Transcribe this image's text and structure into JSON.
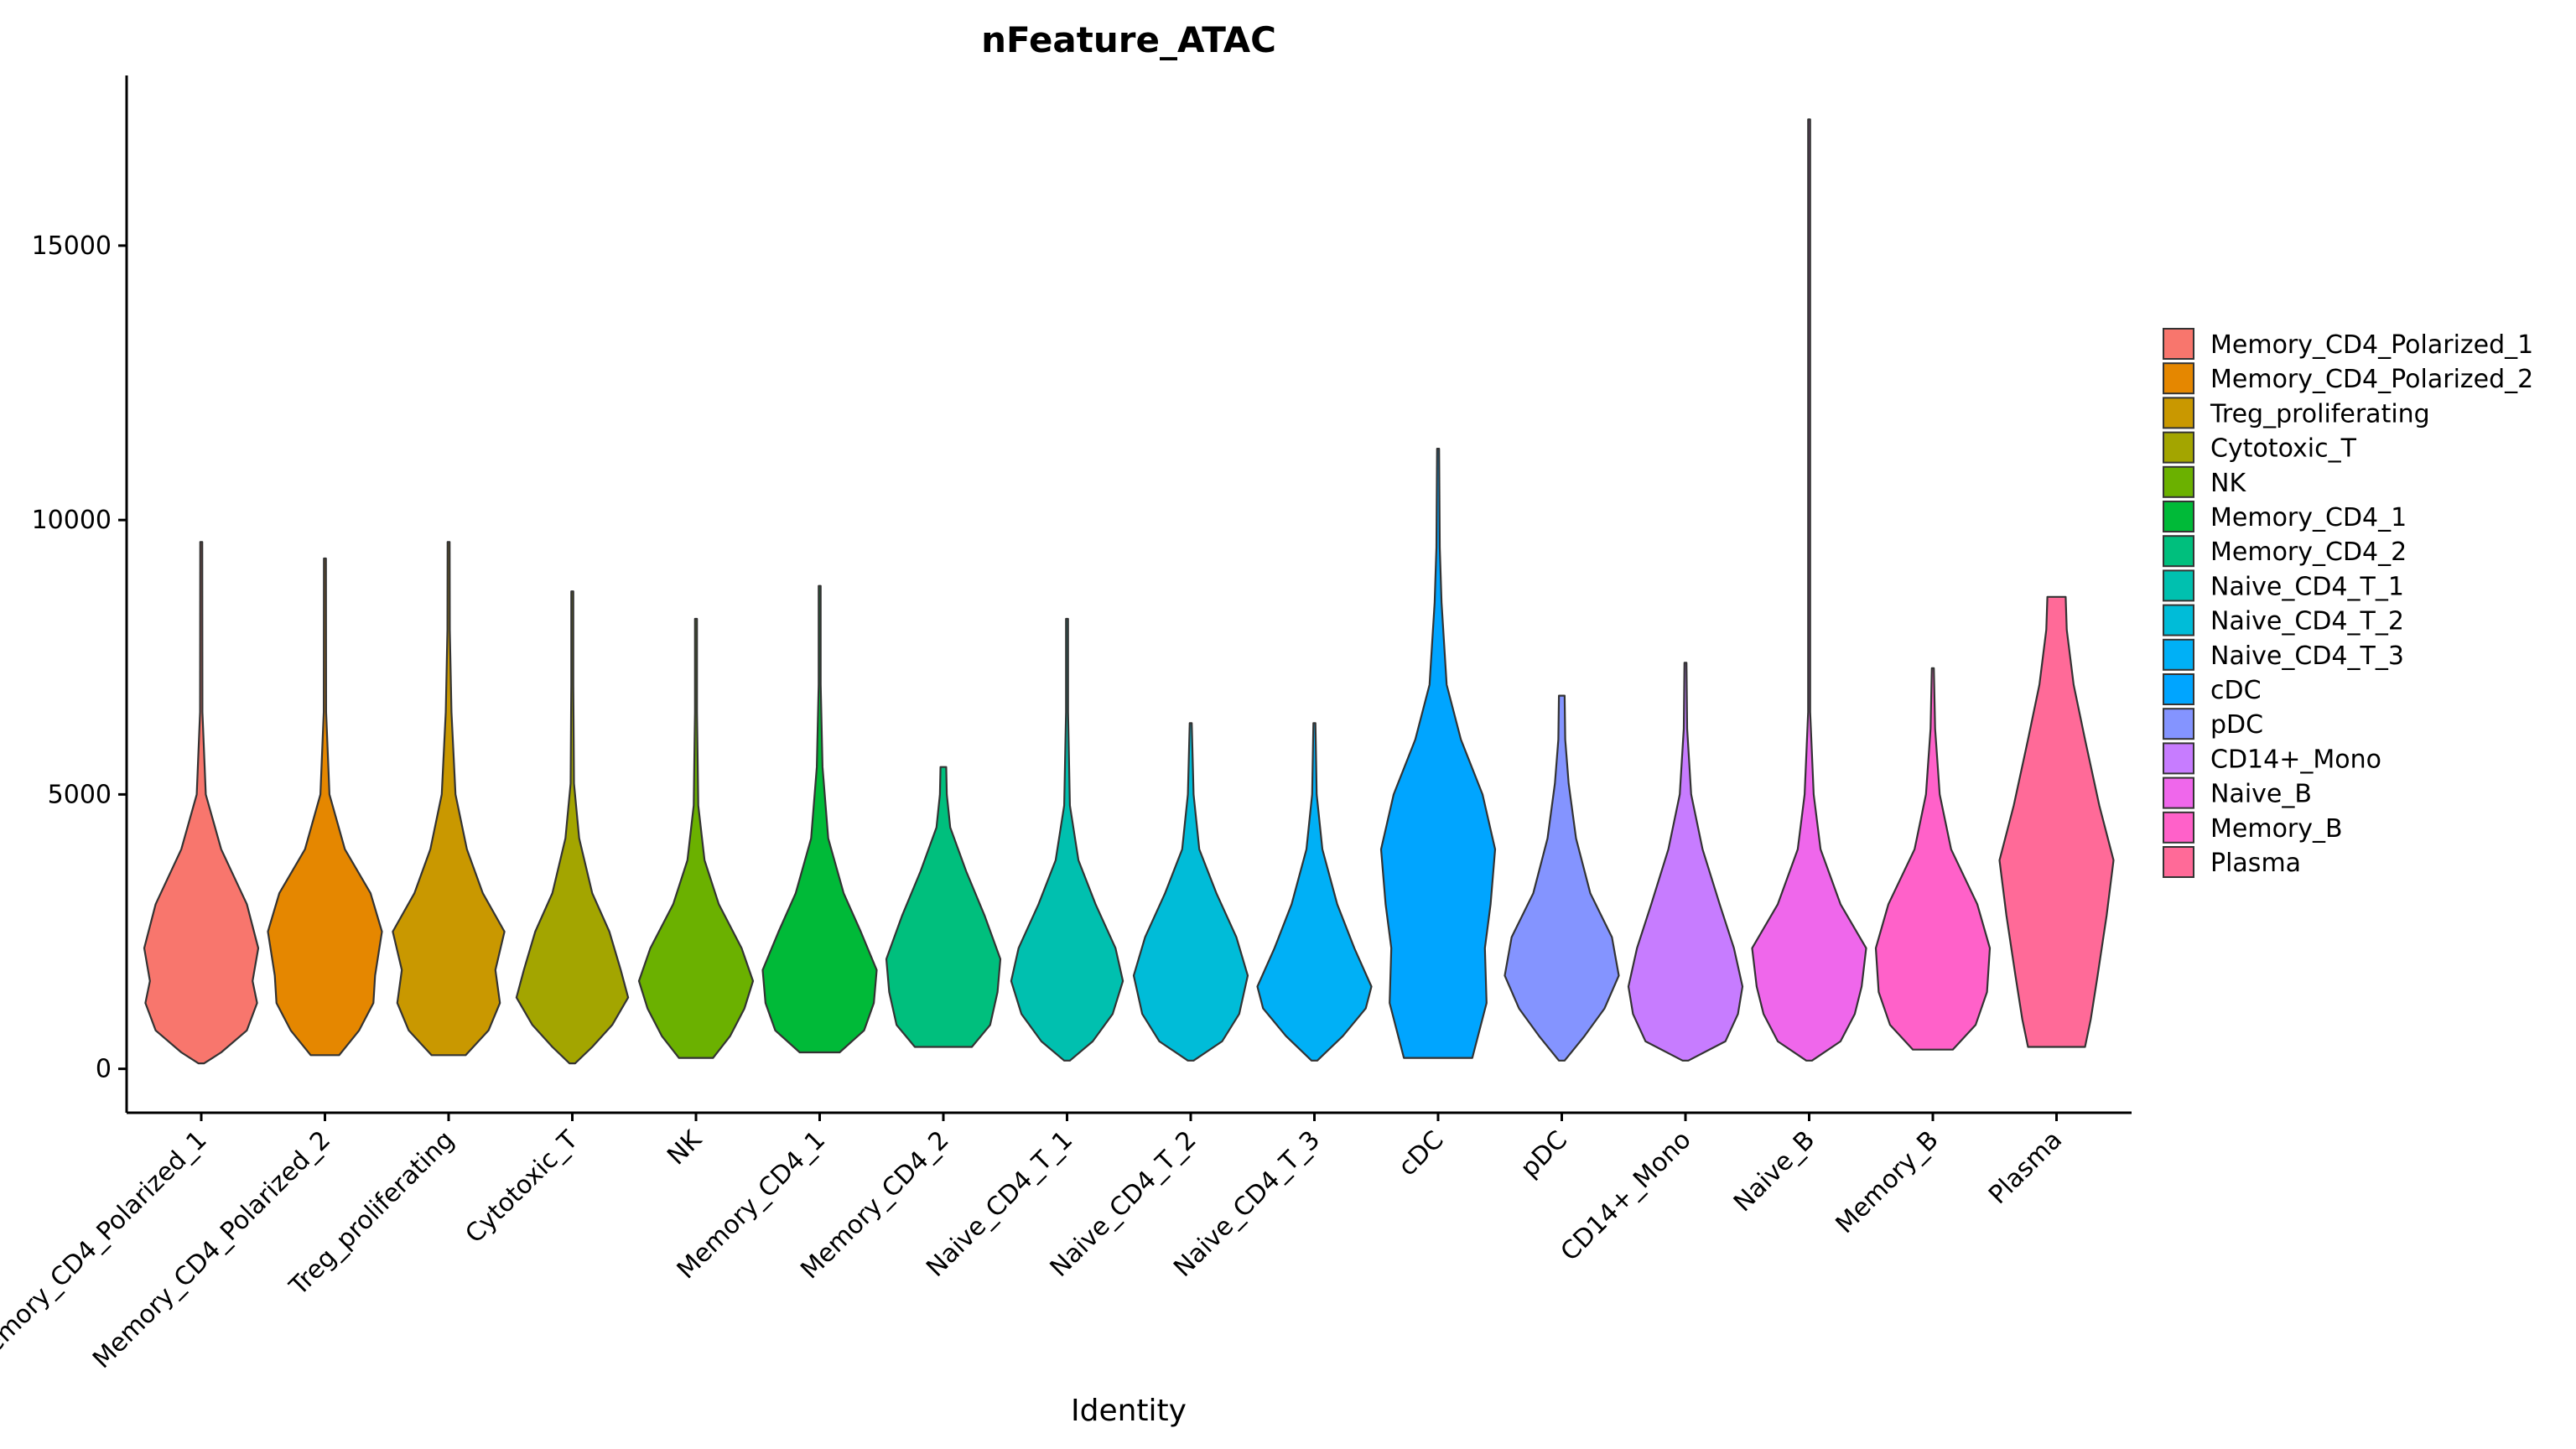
{
  "chart_data": {
    "type": "violin",
    "title": "nFeature_ATAC",
    "xlabel": "Identity",
    "ylabel": "",
    "ylim": [
      -800,
      18100
    ],
    "y_ticks": [
      0,
      5000,
      10000,
      15000
    ],
    "grid": false,
    "legend_position": "right",
    "categories": [
      "Memory_CD4_Polarized_1",
      "Memory_CD4_Polarized_2",
      "Treg_proliferating",
      "Cytotoxic_T",
      "NK",
      "Memory_CD4_1",
      "Memory_CD4_2",
      "Naive_CD4_T_1",
      "Naive_CD4_T_2",
      "Naive_CD4_T_3",
      "cDC",
      "pDC",
      "CD14+_Mono",
      "Naive_B",
      "Memory_B",
      "Plasma"
    ],
    "colors": [
      "#F8766D",
      "#E58700",
      "#C99800",
      "#A3A500",
      "#6BB100",
      "#00BA38",
      "#00BF7D",
      "#00C0AF",
      "#00BCD8",
      "#00B0F6",
      "#00A5FF",
      "#8494FF",
      "#C77CFF",
      "#EF67EB",
      "#FF61C9",
      "#FF6A98"
    ],
    "series": [
      {
        "name": "Memory_CD4_Polarized_1",
        "min": 100,
        "max": 9600,
        "profile": [
          [
            100,
            0.05
          ],
          [
            300,
            0.35
          ],
          [
            700,
            0.8
          ],
          [
            1200,
            0.98
          ],
          [
            1600,
            0.9
          ],
          [
            2200,
            1.0
          ],
          [
            3000,
            0.8
          ],
          [
            4000,
            0.35
          ],
          [
            5000,
            0.08
          ],
          [
            6500,
            0.02
          ],
          [
            9600,
            0.005
          ]
        ]
      },
      {
        "name": "Memory_CD4_Polarized_2",
        "min": 250,
        "max": 9300,
        "profile": [
          [
            250,
            0.25
          ],
          [
            700,
            0.6
          ],
          [
            1200,
            0.85
          ],
          [
            1700,
            0.88
          ],
          [
            2500,
            1.0
          ],
          [
            3200,
            0.8
          ],
          [
            4000,
            0.35
          ],
          [
            5000,
            0.08
          ],
          [
            6500,
            0.02
          ],
          [
            9300,
            0.005
          ]
        ]
      },
      {
        "name": "Treg_proliferating",
        "min": 250,
        "max": 9600,
        "profile": [
          [
            250,
            0.3
          ],
          [
            700,
            0.7
          ],
          [
            1200,
            0.9
          ],
          [
            1800,
            0.82
          ],
          [
            2500,
            0.98
          ],
          [
            3200,
            0.6
          ],
          [
            4000,
            0.32
          ],
          [
            5000,
            0.12
          ],
          [
            6500,
            0.05
          ],
          [
            8000,
            0.02
          ],
          [
            9600,
            0.005
          ]
        ]
      },
      {
        "name": "Cytotoxic_T",
        "min": 100,
        "max": 8700,
        "profile": [
          [
            100,
            0.05
          ],
          [
            400,
            0.35
          ],
          [
            800,
            0.7
          ],
          [
            1300,
            0.98
          ],
          [
            1800,
            0.85
          ],
          [
            2500,
            0.65
          ],
          [
            3200,
            0.35
          ],
          [
            4200,
            0.12
          ],
          [
            5200,
            0.03
          ],
          [
            7000,
            0.01
          ],
          [
            8700,
            0.005
          ]
        ]
      },
      {
        "name": "NK",
        "min": 200,
        "max": 8200,
        "profile": [
          [
            200,
            0.3
          ],
          [
            600,
            0.6
          ],
          [
            1100,
            0.85
          ],
          [
            1600,
            1.0
          ],
          [
            2200,
            0.8
          ],
          [
            3000,
            0.4
          ],
          [
            3800,
            0.15
          ],
          [
            4800,
            0.04
          ],
          [
            6500,
            0.01
          ],
          [
            8200,
            0.005
          ]
        ]
      },
      {
        "name": "Memory_CD4_1",
        "min": 300,
        "max": 8800,
        "profile": [
          [
            300,
            0.35
          ],
          [
            700,
            0.78
          ],
          [
            1200,
            0.95
          ],
          [
            1800,
            1.0
          ],
          [
            2500,
            0.72
          ],
          [
            3200,
            0.42
          ],
          [
            4200,
            0.15
          ],
          [
            5500,
            0.05
          ],
          [
            7000,
            0.015
          ],
          [
            8800,
            0.005
          ]
        ]
      },
      {
        "name": "Memory_CD4_2",
        "min": 400,
        "max": 5500,
        "profile": [
          [
            400,
            0.5
          ],
          [
            800,
            0.82
          ],
          [
            1400,
            0.95
          ],
          [
            2000,
            1.0
          ],
          [
            2800,
            0.72
          ],
          [
            3600,
            0.4
          ],
          [
            4400,
            0.12
          ],
          [
            5000,
            0.06
          ],
          [
            5500,
            0.05
          ]
        ]
      },
      {
        "name": "Naive_CD4_T_1",
        "min": 150,
        "max": 8200,
        "profile": [
          [
            150,
            0.05
          ],
          [
            500,
            0.45
          ],
          [
            1000,
            0.8
          ],
          [
            1600,
            0.98
          ],
          [
            2200,
            0.85
          ],
          [
            3000,
            0.5
          ],
          [
            3800,
            0.2
          ],
          [
            4800,
            0.05
          ],
          [
            6500,
            0.01
          ],
          [
            8200,
            0.005
          ]
        ]
      },
      {
        "name": "Naive_CD4_T_2",
        "min": 150,
        "max": 6300,
        "profile": [
          [
            150,
            0.05
          ],
          [
            500,
            0.55
          ],
          [
            1000,
            0.85
          ],
          [
            1700,
            1.0
          ],
          [
            2400,
            0.8
          ],
          [
            3200,
            0.45
          ],
          [
            4000,
            0.15
          ],
          [
            5000,
            0.05
          ],
          [
            6300,
            0.005
          ]
        ]
      },
      {
        "name": "Naive_CD4_T_3",
        "min": 150,
        "max": 6300,
        "profile": [
          [
            150,
            0.05
          ],
          [
            600,
            0.5
          ],
          [
            1100,
            0.9
          ],
          [
            1500,
            1.0
          ],
          [
            2200,
            0.7
          ],
          [
            3000,
            0.4
          ],
          [
            4000,
            0.14
          ],
          [
            5000,
            0.04
          ],
          [
            6300,
            0.005
          ]
        ]
      },
      {
        "name": "cDC",
        "min": 200,
        "max": 11300,
        "profile": [
          [
            200,
            0.6
          ],
          [
            1200,
            0.85
          ],
          [
            2200,
            0.82
          ],
          [
            3000,
            0.92
          ],
          [
            4000,
            1.0
          ],
          [
            5000,
            0.78
          ],
          [
            6000,
            0.4
          ],
          [
            7000,
            0.15
          ],
          [
            8500,
            0.06
          ],
          [
            9500,
            0.03
          ],
          [
            11300,
            0.005
          ]
        ]
      },
      {
        "name": "pDC",
        "min": 150,
        "max": 6800,
        "profile": [
          [
            150,
            0.05
          ],
          [
            600,
            0.4
          ],
          [
            1100,
            0.75
          ],
          [
            1700,
            1.0
          ],
          [
            2400,
            0.88
          ],
          [
            3200,
            0.5
          ],
          [
            4200,
            0.25
          ],
          [
            5200,
            0.12
          ],
          [
            6000,
            0.06
          ],
          [
            6800,
            0.05
          ]
        ]
      },
      {
        "name": "CD14+_Mono",
        "min": 150,
        "max": 7400,
        "profile": [
          [
            150,
            0.05
          ],
          [
            500,
            0.7
          ],
          [
            1000,
            0.92
          ],
          [
            1500,
            1.0
          ],
          [
            2200,
            0.85
          ],
          [
            3000,
            0.6
          ],
          [
            4000,
            0.3
          ],
          [
            5000,
            0.1
          ],
          [
            6200,
            0.03
          ],
          [
            7400,
            0.005
          ]
        ]
      },
      {
        "name": "Naive_B",
        "min": 150,
        "max": 17300,
        "profile": [
          [
            150,
            0.05
          ],
          [
            500,
            0.55
          ],
          [
            1000,
            0.8
          ],
          [
            1500,
            0.92
          ],
          [
            2200,
            1.0
          ],
          [
            3000,
            0.55
          ],
          [
            4000,
            0.2
          ],
          [
            5000,
            0.08
          ],
          [
            6500,
            0.01
          ],
          [
            17300,
            0.003
          ]
        ]
      },
      {
        "name": "Memory_B",
        "min": 350,
        "max": 7300,
        "profile": [
          [
            350,
            0.35
          ],
          [
            800,
            0.75
          ],
          [
            1400,
            0.95
          ],
          [
            2200,
            1.0
          ],
          [
            3000,
            0.78
          ],
          [
            4000,
            0.32
          ],
          [
            5000,
            0.12
          ],
          [
            6200,
            0.04
          ],
          [
            7300,
            0.005
          ]
        ]
      },
      {
        "name": "Plasma",
        "min": 400,
        "max": 8600,
        "profile": [
          [
            400,
            0.5
          ],
          [
            900,
            0.6
          ],
          [
            1700,
            0.72
          ],
          [
            2800,
            0.88
          ],
          [
            3800,
            1.0
          ],
          [
            4800,
            0.75
          ],
          [
            6000,
            0.5
          ],
          [
            7000,
            0.3
          ],
          [
            8000,
            0.18
          ],
          [
            8600,
            0.16
          ]
        ]
      }
    ]
  }
}
